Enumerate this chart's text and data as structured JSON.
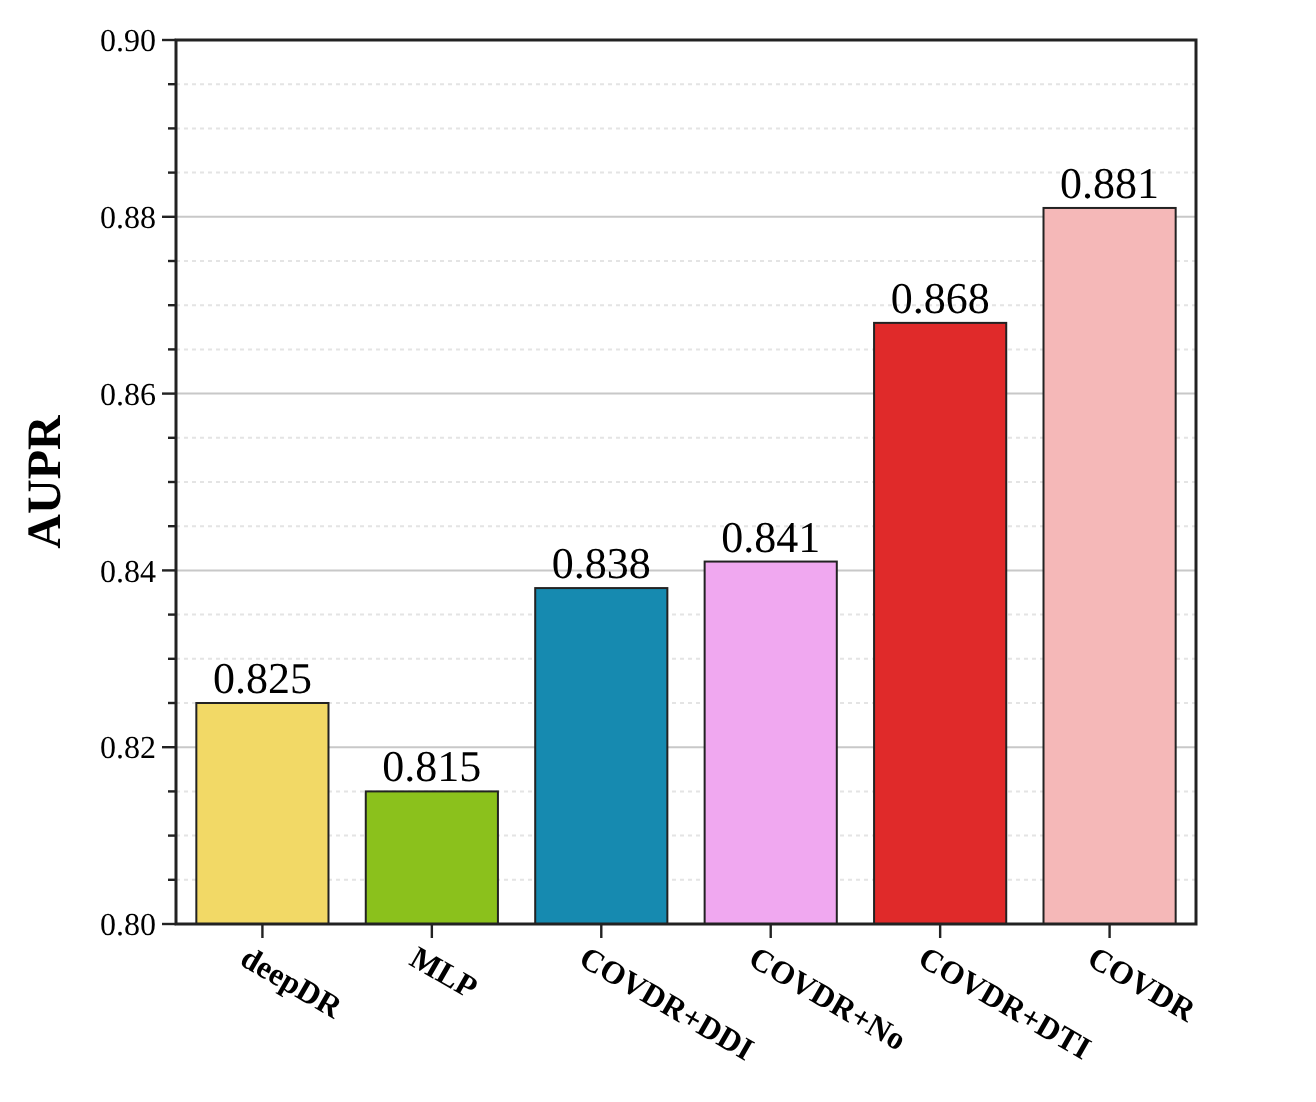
{
  "chart_data": {
    "type": "bar",
    "ylabel": "AUPR",
    "categories": [
      "deepDR",
      "MLP",
      "COVDR+DDI",
      "COVDR+No",
      "COVDR+DTI",
      "COVDR"
    ],
    "values": [
      0.825,
      0.815,
      0.838,
      0.841,
      0.868,
      0.881
    ],
    "colors": [
      "#f2d966",
      "#8bc11c",
      "#168ab0",
      "#f0a8f0",
      "#e02a2a",
      "#f5b8b8"
    ],
    "data_labels": true,
    "ylim": [
      0.8,
      0.9
    ],
    "yticks": [
      {
        "value": 0.8,
        "label": "0.80"
      },
      {
        "value": 0.805,
        "label": null
      },
      {
        "value": 0.81,
        "label": null
      },
      {
        "value": 0.815,
        "label": null
      },
      {
        "value": 0.82,
        "label": "0.82"
      },
      {
        "value": 0.825,
        "label": null
      },
      {
        "value": 0.83,
        "label": null
      },
      {
        "value": 0.835,
        "label": null
      },
      {
        "value": 0.84,
        "label": "0.84"
      },
      {
        "value": 0.845,
        "label": null
      },
      {
        "value": 0.85,
        "label": null
      },
      {
        "value": 0.855,
        "label": null
      },
      {
        "value": 0.86,
        "label": "0.86"
      },
      {
        "value": 0.865,
        "label": null
      },
      {
        "value": 0.87,
        "label": null
      },
      {
        "value": 0.875,
        "label": null
      },
      {
        "value": 0.88,
        "label": "0.88"
      },
      {
        "value": 0.885,
        "label": null
      },
      {
        "value": 0.89,
        "label": null
      },
      {
        "value": 0.895,
        "label": null
      },
      {
        "value": 0.9,
        "label": "0.90"
      }
    ],
    "grid": true
  }
}
